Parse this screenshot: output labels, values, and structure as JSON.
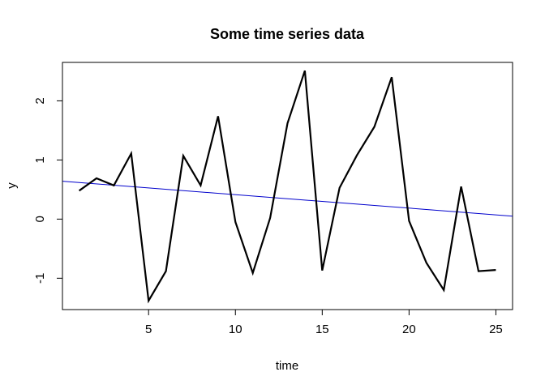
{
  "chart_data": {
    "type": "line",
    "title": "Some time series data",
    "xlabel": "time",
    "ylabel": "y",
    "xlim": [
      0.04,
      25.96
    ],
    "ylim": [
      -1.53,
      2.65
    ],
    "x_ticks": [
      5,
      10,
      15,
      20,
      25
    ],
    "y_ticks": [
      -1,
      0,
      1,
      2
    ],
    "grid": false,
    "series": [
      {
        "color": "#000000",
        "x": [
          1,
          2,
          3,
          4,
          5,
          6,
          7,
          8,
          9,
          10,
          11,
          12,
          13,
          14,
          15,
          16,
          17,
          18,
          19,
          20,
          21,
          22,
          23,
          24,
          25
        ],
        "values": [
          0.48,
          0.69,
          0.57,
          1.11,
          -1.38,
          -0.88,
          1.07,
          0.57,
          1.74,
          -0.05,
          -0.91,
          0.02,
          1.62,
          2.51,
          -0.87,
          0.53,
          1.08,
          1.56,
          2.4,
          -0.03,
          -0.74,
          -1.2,
          0.55,
          -0.88,
          -0.86
        ]
      }
    ],
    "trend_line": {
      "color": "#0000cc",
      "x": [
        0.04,
        25.96
      ],
      "values": [
        0.64,
        0.05
      ]
    }
  }
}
